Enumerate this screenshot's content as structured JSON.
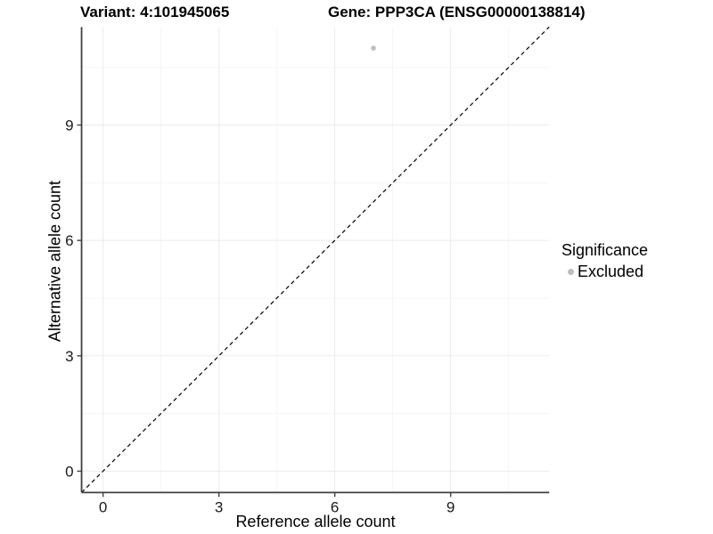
{
  "titles": {
    "variant": "Variant: 4:101945065",
    "gene": "Gene: PPP3CA (ENSG00000138814)"
  },
  "axes": {
    "x_label": "Reference allele count",
    "y_label": "Alternative allele count"
  },
  "legend": {
    "title": "Significance",
    "items": [
      {
        "label": "Excluded",
        "color": "#BEBEBE"
      }
    ]
  },
  "colors": {
    "background": "#FFFFFF",
    "point": "#BEBEBE",
    "grid_major": "#EBEBEB",
    "grid_minor": "#F5F5F5",
    "axis_line": "#404040",
    "tick_label": "#1A1A1A",
    "reference_line": "#000000"
  },
  "chart_data": {
    "type": "scatter",
    "title": "Variant: 4:101945065   Gene: PPP3CA (ENSG00000138814)",
    "xlabel": "Reference allele count",
    "ylabel": "Alternative allele count",
    "xlim": [
      -0.555,
      11.55
    ],
    "ylim": [
      -0.555,
      11.55
    ],
    "x_major_ticks": [
      0,
      3,
      6,
      9
    ],
    "y_major_ticks": [
      0,
      3,
      6,
      9
    ],
    "x_minor_ticks": [
      1.5,
      4.5,
      7.5,
      10.5
    ],
    "y_minor_ticks": [
      1.5,
      4.5,
      7.5,
      10.5
    ],
    "grid": true,
    "legend_position": "right",
    "series": [
      {
        "name": "Excluded",
        "color": "#BEBEBE",
        "points": [
          {
            "x": 7,
            "y": 11
          }
        ]
      }
    ],
    "reference_line": {
      "type": "abline",
      "slope": 1,
      "intercept": 0,
      "style": "dashed"
    }
  }
}
